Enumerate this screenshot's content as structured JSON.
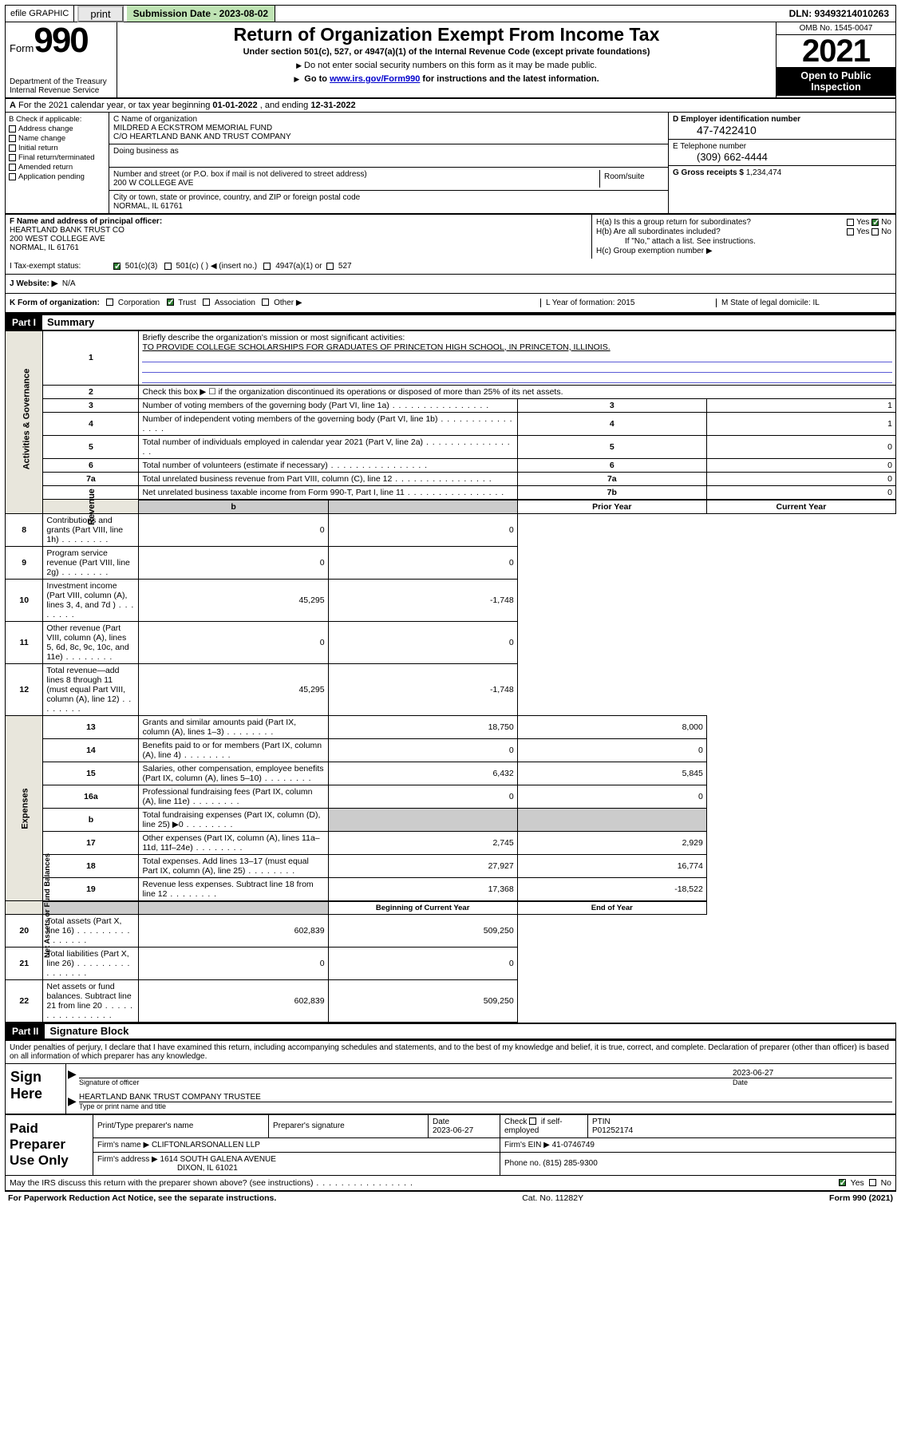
{
  "efile": {
    "efile_label": "efile GRAPHIC",
    "print": "print",
    "submission_label": "Submission Date - 2023-08-02",
    "dln": "DLN: 93493214010263"
  },
  "header": {
    "form_word": "Form",
    "form_num": "990",
    "dept": "Department of the Treasury Internal Revenue Service",
    "title": "Return of Organization Exempt From Income Tax",
    "sub1": "Under section 501(c), 527, or 4947(a)(1) of the Internal Revenue Code (except private foundations)",
    "sub2": "Do not enter social security numbers on this form as it may be made public.",
    "sub3_pre": "Go to ",
    "sub3_link": "www.irs.gov/Form990",
    "sub3_post": " for instructions and the latest information.",
    "omb": "OMB No. 1545-0047",
    "year": "2021",
    "open": "Open to Public Inspection"
  },
  "rowA": {
    "text_a": "A",
    "text": "For the 2021 calendar year, or tax year beginning ",
    "begin": "01-01-2022",
    "mid": " , and ending ",
    "end": "12-31-2022"
  },
  "B": {
    "header": "B Check if applicable:",
    "items": [
      "Address change",
      "Name change",
      "Initial return",
      "Final return/terminated",
      "Amended return",
      "Application pending"
    ]
  },
  "C": {
    "label": "C Name of organization",
    "name1": "MILDRED A ECKSTROM MEMORIAL FUND",
    "name2": "C/O HEARTLAND BANK AND TRUST COMPANY",
    "dba_label": "Doing business as",
    "addr_label": "Number and street (or P.O. box if mail is not delivered to street address)",
    "room_label": "Room/suite",
    "addr": "200 W COLLEGE AVE",
    "city_label": "City or town, state or province, country, and ZIP or foreign postal code",
    "city": "NORMAL, IL  61761"
  },
  "D": {
    "label": "D Employer identification number",
    "ein": "47-7422410"
  },
  "E": {
    "label": "E Telephone number",
    "phone": "(309) 662-4444"
  },
  "G": {
    "label": "G Gross receipts $",
    "val": "1,234,474"
  },
  "F": {
    "label": "F Name and address of principal officer:",
    "l1": "HEARTLAND BANK TRUST CO",
    "l2": "200 WEST COLLEGE AVE",
    "l3": "NORMAL, IL  61761"
  },
  "H": {
    "a": "H(a)  Is this a group return for subordinates?",
    "b": "H(b)  Are all subordinates included?",
    "b2": "If \"No,\" attach a list. See instructions.",
    "c": "H(c)  Group exemption number ▶",
    "yes": "Yes",
    "no": "No"
  },
  "I": {
    "label": "I   Tax-exempt status:",
    "o1": "501(c)(3)",
    "o2": "501(c) (  ) ◀ (insert no.)",
    "o3": "4947(a)(1) or",
    "o4": "527"
  },
  "J": {
    "label": "J   Website: ▶",
    "val": "N/A"
  },
  "K": {
    "label": "K Form of organization:",
    "opts": [
      "Corporation",
      "Trust",
      "Association",
      "Other ▶"
    ],
    "L": "L Year of formation: 2015",
    "M": "M State of legal domicile: IL"
  },
  "part1": {
    "hdr": "Part I",
    "title": "Summary",
    "l1a": "Briefly describe the organization's mission or most significant activities:",
    "l1b": "TO PROVIDE COLLEGE SCHOLARSHIPS FOR GRADUATES OF PRINCETON HIGH SCHOOL, IN PRINCETON, ILLINOIS.",
    "l2": "Check this box ▶ ☐  if the organization discontinued its operations or disposed of more than 25% of its net assets.",
    "rows_gov": [
      {
        "n": "3",
        "d": "Number of voting members of the governing body (Part VI, line 1a)",
        "b": "3",
        "v": "1"
      },
      {
        "n": "4",
        "d": "Number of independent voting members of the governing body (Part VI, line 1b)",
        "b": "4",
        "v": "1"
      },
      {
        "n": "5",
        "d": "Total number of individuals employed in calendar year 2021 (Part V, line 2a)",
        "b": "5",
        "v": "0"
      },
      {
        "n": "6",
        "d": "Total number of volunteers (estimate if necessary)",
        "b": "6",
        "v": "0"
      },
      {
        "n": "7a",
        "d": "Total unrelated business revenue from Part VIII, column (C), line 12",
        "b": "7a",
        "v": "0"
      },
      {
        "n": "",
        "d": "Net unrelated business taxable income from Form 990-T, Part I, line 11",
        "b": "7b",
        "v": "0"
      }
    ],
    "prior_hdr": "Prior Year",
    "curr_hdr": "Current Year",
    "rows_rev": [
      {
        "n": "8",
        "d": "Contributions and grants (Part VIII, line 1h)",
        "p": "0",
        "c": "0"
      },
      {
        "n": "9",
        "d": "Program service revenue (Part VIII, line 2g)",
        "p": "0",
        "c": "0"
      },
      {
        "n": "10",
        "d": "Investment income (Part VIII, column (A), lines 3, 4, and 7d )",
        "p": "45,295",
        "c": "-1,748"
      },
      {
        "n": "11",
        "d": "Other revenue (Part VIII, column (A), lines 5, 6d, 8c, 9c, 10c, and 11e)",
        "p": "0",
        "c": "0"
      },
      {
        "n": "12",
        "d": "Total revenue—add lines 8 through 11 (must equal Part VIII, column (A), line 12)",
        "p": "45,295",
        "c": "-1,748"
      }
    ],
    "rows_exp": [
      {
        "n": "13",
        "d": "Grants and similar amounts paid (Part IX, column (A), lines 1–3)",
        "p": "18,750",
        "c": "8,000"
      },
      {
        "n": "14",
        "d": "Benefits paid to or for members (Part IX, column (A), line 4)",
        "p": "0",
        "c": "0"
      },
      {
        "n": "15",
        "d": "Salaries, other compensation, employee benefits (Part IX, column (A), lines 5–10)",
        "p": "6,432",
        "c": "5,845"
      },
      {
        "n": "16a",
        "d": "Professional fundraising fees (Part IX, column (A), line 11e)",
        "p": "0",
        "c": "0"
      },
      {
        "n": "b",
        "d": "Total fundraising expenses (Part IX, column (D), line 25) ▶0",
        "p": "",
        "c": "",
        "grey": true
      },
      {
        "n": "17",
        "d": "Other expenses (Part IX, column (A), lines 11a–11d, 11f–24e)",
        "p": "2,745",
        "c": "2,929"
      },
      {
        "n": "18",
        "d": "Total expenses. Add lines 13–17 (must equal Part IX, column (A), line 25)",
        "p": "27,927",
        "c": "16,774"
      },
      {
        "n": "19",
        "d": "Revenue less expenses. Subtract line 18 from line 12",
        "p": "17,368",
        "c": "-18,522"
      }
    ],
    "boy_hdr": "Beginning of Current Year",
    "eoy_hdr": "End of Year",
    "rows_net": [
      {
        "n": "20",
        "d": "Total assets (Part X, line 16)",
        "p": "602,839",
        "c": "509,250"
      },
      {
        "n": "21",
        "d": "Total liabilities (Part X, line 26)",
        "p": "0",
        "c": "0"
      },
      {
        "n": "22",
        "d": "Net assets or fund balances. Subtract line 21 from line 20",
        "p": "602,839",
        "c": "509,250"
      }
    ],
    "vlabels": {
      "gov": "Activities & Governance",
      "rev": "Revenue",
      "exp": "Expenses",
      "net": "Net Assets or Fund Balances"
    }
  },
  "part2": {
    "hdr": "Part II",
    "title": "Signature Block"
  },
  "sig": {
    "decl": "Under penalties of perjury, I declare that I have examined this return, including accompanying schedules and statements, and to the best of my knowledge and belief, it is true, correct, and complete. Declaration of preparer (other than officer) is based on all information of which preparer has any knowledge.",
    "sign_here": "Sign Here",
    "sig_officer": "Signature of officer",
    "date": "2023-06-27",
    "date_lbl": "Date",
    "name_title": "HEARTLAND BANK TRUST COMPANY TRUSTEE",
    "name_lbl": "Type or print name and title"
  },
  "prep": {
    "label": "Paid Preparer Use Only",
    "h1": "Print/Type preparer's name",
    "h2": "Preparer's signature",
    "h3": "Date",
    "h3v": "2023-06-27",
    "h4a": "Check",
    "h4b": "if self-employed",
    "h5": "PTIN",
    "h5v": "P01252174",
    "firm_lbl": "Firm's name   ▶",
    "firm": "CLIFTONLARSONALLEN LLP",
    "ein_lbl": "Firm's EIN ▶",
    "ein": "41-0746749",
    "addr_lbl": "Firm's address ▶",
    "addr1": "1614 SOUTH GALENA AVENUE",
    "addr2": "DIXON, IL  61021",
    "phone_lbl": "Phone no.",
    "phone": "(815) 285-9300"
  },
  "may": {
    "q": "May the IRS discuss this return with the preparer shown above? (see instructions)",
    "yes": "Yes",
    "no": "No"
  },
  "footer": {
    "left": "For Paperwork Reduction Act Notice, see the separate instructions.",
    "mid": "Cat. No. 11282Y",
    "right": "Form 990 (2021)"
  }
}
